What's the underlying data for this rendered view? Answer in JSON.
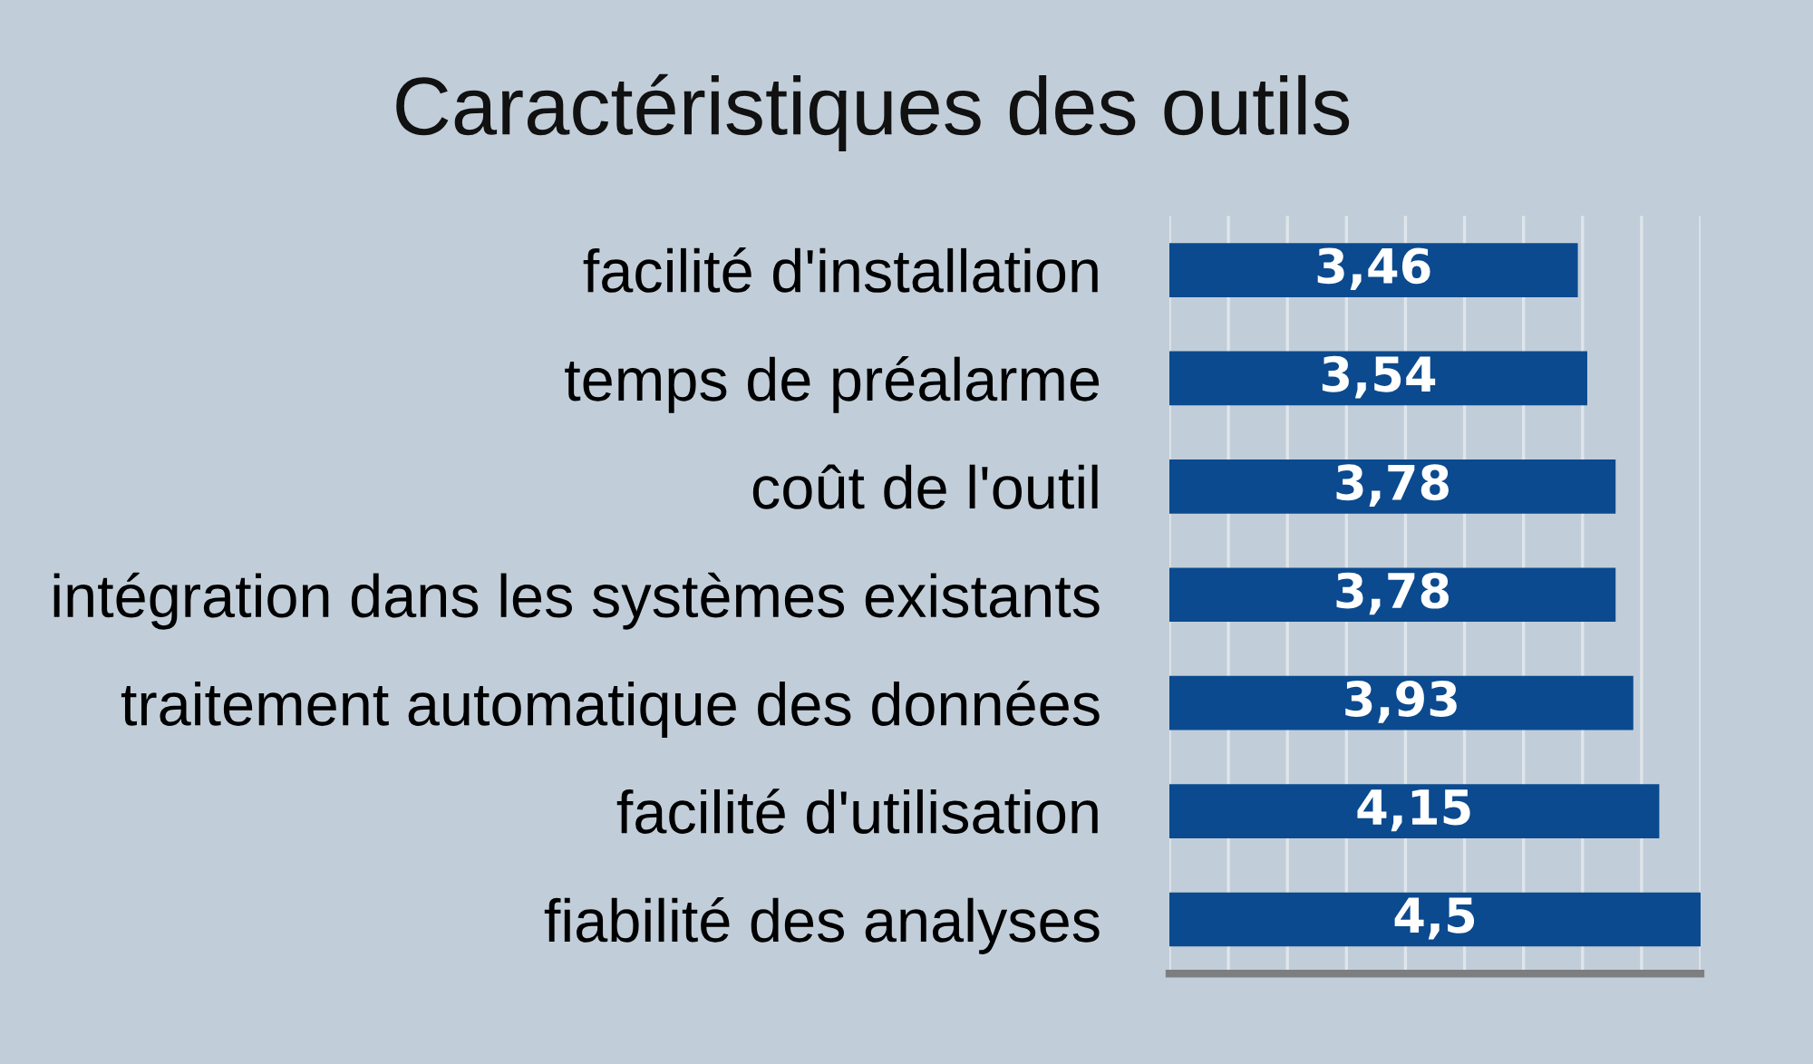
{
  "chart_data": {
    "type": "bar",
    "orientation": "horizontal",
    "title": "Caractéristiques des outils",
    "categories": [
      "facilité d'installation",
      "temps de préalarme",
      "coût de l'outil",
      "intégration dans les systèmes existants",
      "traitement automatique des données",
      "facilité d'utilisation",
      "fiabilité des analyses"
    ],
    "values": [
      3.46,
      3.54,
      3.78,
      3.78,
      3.93,
      4.15,
      4.5
    ],
    "value_labels": [
      "3,46",
      "3,54",
      "3,78",
      "3,78",
      "3,93",
      "4,15",
      "4,5"
    ],
    "color": "#0b4a8f",
    "xlim": [
      0,
      4.5
    ],
    "xticks": [
      {
        "value": 0,
        "label": null
      },
      {
        "value": 0.5,
        "label": null
      },
      {
        "value": 1,
        "label": null
      },
      {
        "value": 1.5,
        "label": null
      },
      {
        "value": 2,
        "label": null
      },
      {
        "value": 2.5,
        "label": null
      },
      {
        "value": 3,
        "label": null
      },
      {
        "value": 3.5,
        "label": null
      },
      {
        "value": 4,
        "label": null
      },
      {
        "value": 4.5,
        "label": null
      }
    ],
    "grid": "x",
    "tick_labels": "y"
  }
}
